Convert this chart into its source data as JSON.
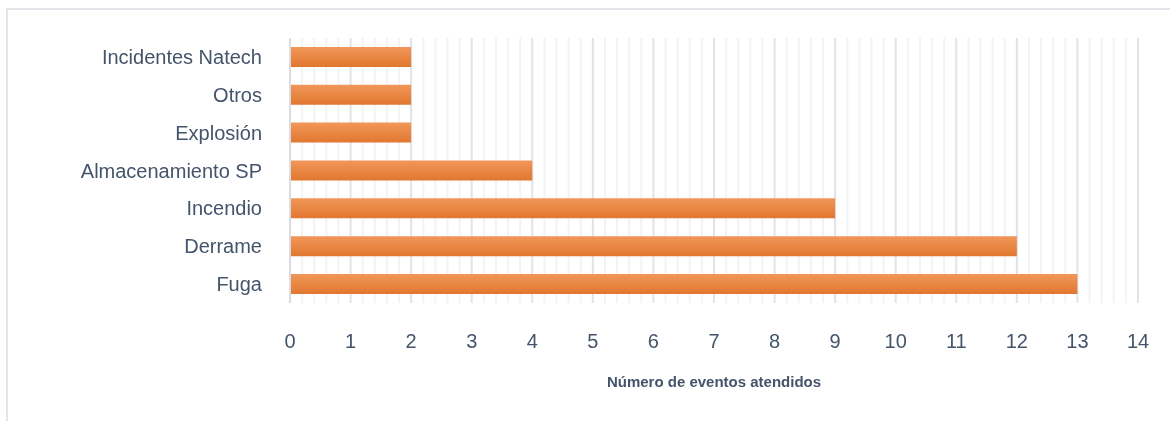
{
  "chart_data": {
    "type": "bar",
    "orientation": "horizontal",
    "categories": [
      "Incidentes Natech",
      "Otros",
      "Explosión",
      "Almacenamiento SP",
      "Incendio",
      "Derrame",
      "Fuga"
    ],
    "values": [
      2,
      2,
      2,
      4,
      9,
      12,
      13
    ],
    "color": "#ed7d31",
    "xlabel": "Número de eventos atendidos",
    "xlim": [
      0,
      14
    ],
    "xticks": [
      0,
      {
        "value": 0.2,
        "label": null
      },
      {
        "value": 0.4,
        "label": null
      },
      {
        "value": 0.6,
        "label": null
      },
      {
        "value": 0.8,
        "label": null
      },
      1,
      {
        "value": 1.2,
        "label": null
      },
      {
        "value": 1.4,
        "label": null
      },
      {
        "value": 1.6,
        "label": null
      },
      {
        "value": 1.8,
        "label": null
      },
      2,
      {
        "value": 2.2,
        "label": null
      },
      {
        "value": 2.4,
        "label": null
      },
      {
        "value": 2.6,
        "label": null
      },
      {
        "value": 2.8,
        "label": null
      },
      3,
      {
        "value": 3.2,
        "label": null
      },
      {
        "value": 3.4,
        "label": null
      },
      {
        "value": 3.6,
        "label": null
      },
      {
        "value": 3.8,
        "label": null
      },
      4,
      {
        "value": 4.2,
        "label": null
      },
      {
        "value": 4.4,
        "label": null
      },
      {
        "value": 4.6,
        "label": null
      },
      {
        "value": 4.8,
        "label": null
      },
      5,
      {
        "value": 5.2,
        "label": null
      },
      {
        "value": 5.4,
        "label": null
      },
      {
        "value": 5.6,
        "label": null
      },
      {
        "value": 5.8,
        "label": null
      },
      6,
      {
        "value": 6.2,
        "label": null
      },
      {
        "value": 6.4,
        "label": null
      },
      {
        "value": 6.6,
        "label": null
      },
      {
        "value": 6.8,
        "label": null
      },
      7,
      {
        "value": 7.2,
        "label": null
      },
      {
        "value": 7.4,
        "label": null
      },
      {
        "value": 7.6,
        "label": null
      },
      {
        "value": 7.8,
        "label": null
      },
      8,
      {
        "value": 8.2,
        "label": null
      },
      {
        "value": 8.4,
        "label": null
      },
      {
        "value": 8.6,
        "label": null
      },
      {
        "value": 8.8,
        "label": null
      },
      9,
      {
        "value": 9.2,
        "label": null
      },
      {
        "value": 9.4,
        "label": null
      },
      {
        "value": 9.6,
        "label": null
      },
      {
        "value": 9.8,
        "label": null
      },
      10,
      {
        "value": 10.2,
        "label": null
      },
      {
        "value": 10.4,
        "label": null
      },
      {
        "value": 10.6,
        "label": null
      },
      {
        "value": 10.8,
        "label": null
      },
      11,
      {
        "value": 11.2,
        "label": null
      },
      {
        "value": 11.4,
        "label": null
      },
      {
        "value": 11.6,
        "label": null
      },
      {
        "value": 11.8,
        "label": null
      },
      12,
      {
        "value": 12.2,
        "label": null
      },
      {
        "value": 12.4,
        "label": null
      },
      {
        "value": 12.6,
        "label": null
      },
      {
        "value": 12.8,
        "label": null
      },
      13,
      {
        "value": 13.2,
        "label": null
      },
      {
        "value": 13.4,
        "label": null
      },
      {
        "value": 13.6,
        "label": null
      },
      {
        "value": 13.8,
        "label": null
      },
      14
    ],
    "grid": "x"
  }
}
